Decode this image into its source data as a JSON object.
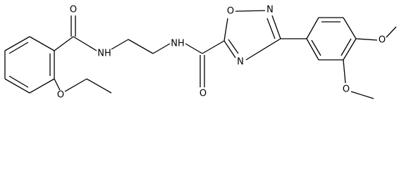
{
  "atoms": {
    "carbonyl_o_left": "O",
    "nh_left": "NH",
    "ether_o": "O",
    "nh_right": "NH",
    "carbonyl_o_right": "O",
    "ring_o": "O",
    "ring_n_top": "N",
    "ring_n_bottom": "N",
    "methoxy_o_top": "O",
    "methoxy_o_bottom": "O"
  }
}
